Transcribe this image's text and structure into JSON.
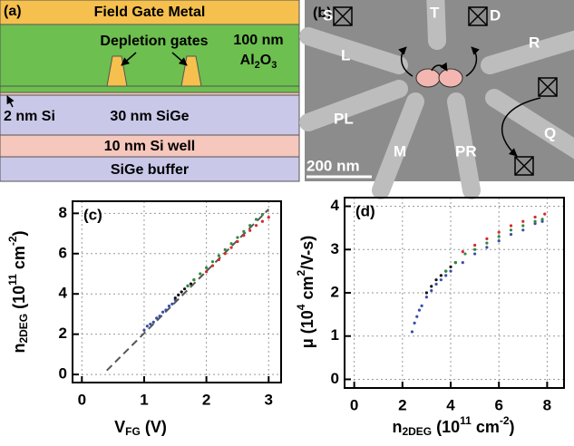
{
  "schematic": {
    "panel_label": "(a)",
    "metal": "Field Gate Metal",
    "gates": "Depletion gates",
    "oxide_thickness": "100 nm",
    "oxide": [
      "Al",
      "2",
      "O",
      "3"
    ],
    "si_cap": "2 nm Si",
    "spacer": "30 nm SiGe",
    "well": "10 nm Si well",
    "buffer": "SiGe buffer"
  },
  "micrograph": {
    "panel_label": "(b)",
    "gates": [
      "S",
      "T",
      "D",
      "L",
      "R",
      "PL",
      "M",
      "PR",
      "Q"
    ],
    "scale_bar": "200 nm"
  },
  "chart_data": [
    {
      "type": "scatter",
      "panel_label": "(c)",
      "xlabel": [
        "V",
        "FG",
        " (V)"
      ],
      "ylabel": [
        "n",
        "2DEG",
        " (10",
        "11",
        " cm",
        "-2",
        ")"
      ],
      "xlim": [
        -0.15,
        3.2
      ],
      "ylim": [
        -0.4,
        8.6
      ],
      "xticks": [
        0,
        1,
        2,
        3
      ],
      "yticks": [
        0,
        2,
        4,
        6,
        8
      ],
      "grid": true,
      "series": [
        {
          "mode": "line",
          "color": "#555555",
          "x": [
            0.4,
            3.0
          ],
          "values": [
            0.2,
            8.2
          ]
        },
        {
          "mode": "markers",
          "color": "#3a4fa8",
          "x": [
            1.0,
            1.05,
            1.1,
            1.15,
            1.2,
            1.25,
            1.3,
            1.35,
            1.4,
            1.45,
            1.5
          ],
          "values": [
            2.2,
            2.4,
            2.5,
            2.6,
            2.8,
            2.9,
            3.1,
            3.2,
            3.4,
            3.5,
            3.7
          ]
        },
        {
          "mode": "markers",
          "color": "#111111",
          "x": [
            1.5,
            1.55,
            1.6,
            1.65,
            1.7,
            1.75,
            1.8
          ],
          "values": [
            3.8,
            3.95,
            4.1,
            4.25,
            4.4,
            4.5,
            4.7
          ]
        },
        {
          "mode": "markers",
          "color": "#2e8b3e",
          "x": [
            1.7,
            1.8,
            1.9,
            2.0,
            2.1,
            2.2,
            2.3,
            2.4,
            2.5,
            2.6,
            2.7,
            2.8,
            2.9
          ],
          "values": [
            4.4,
            4.7,
            5.0,
            5.3,
            5.6,
            5.9,
            6.2,
            6.5,
            6.8,
            7.1,
            7.4,
            7.7,
            7.95
          ]
        },
        {
          "mode": "markers",
          "color": "#d62a2a",
          "x": [
            2.0,
            2.1,
            2.2,
            2.3,
            2.4,
            2.5,
            2.6,
            2.7,
            2.8,
            2.9,
            3.0
          ],
          "values": [
            5.1,
            5.4,
            5.7,
            6.0,
            6.3,
            6.6,
            6.9,
            7.15,
            7.4,
            7.6,
            7.8
          ]
        }
      ]
    },
    {
      "type": "scatter",
      "panel_label": "(d)",
      "xlabel": [
        "n",
        "2DEG",
        " (10",
        "11",
        " cm",
        "-2",
        ")"
      ],
      "ylabel": [
        "μ (10",
        "4",
        " cm",
        "2",
        "/V-s)"
      ],
      "xlim": [
        -0.4,
        8.7
      ],
      "ylim": [
        -0.2,
        4.2
      ],
      "xticks": [
        0,
        2,
        4,
        6,
        8
      ],
      "yticks": [
        0,
        1,
        2,
        3,
        4
      ],
      "grid": true,
      "series": [
        {
          "mode": "markers",
          "color": "#3a4fa8",
          "x": [
            2.4,
            2.5,
            2.6,
            2.7,
            2.8,
            3.0,
            3.2,
            3.4,
            3.6,
            3.8,
            4.0,
            4.5,
            5,
            5.5,
            6,
            6.5,
            7,
            7.5,
            7.8
          ],
          "values": [
            1.1,
            1.3,
            1.45,
            1.6,
            1.7,
            1.9,
            2.05,
            2.2,
            2.3,
            2.4,
            2.5,
            2.7,
            2.9,
            3.05,
            3.2,
            3.35,
            3.45,
            3.6,
            3.65
          ]
        },
        {
          "mode": "markers",
          "color": "#111111",
          "x": [
            3.0,
            3.2,
            3.4,
            3.6,
            3.8,
            4.0,
            4.2
          ],
          "values": [
            2.0,
            2.15,
            2.3,
            2.4,
            2.5,
            2.6,
            2.7
          ]
        },
        {
          "mode": "markers",
          "color": "#2e8b3e",
          "x": [
            3.8,
            4.2,
            4.6,
            5,
            5.5,
            6,
            6.5,
            7,
            7.5,
            7.8
          ],
          "values": [
            2.5,
            2.7,
            2.9,
            3.0,
            3.15,
            3.3,
            3.45,
            3.55,
            3.65,
            3.7
          ]
        },
        {
          "mode": "markers",
          "color": "#d62a2a",
          "x": [
            4.5,
            5,
            5.5,
            6,
            6.5,
            7,
            7.5,
            7.9
          ],
          "values": [
            2.95,
            3.1,
            3.25,
            3.4,
            3.55,
            3.65,
            3.75,
            3.82
          ]
        }
      ]
    }
  ]
}
